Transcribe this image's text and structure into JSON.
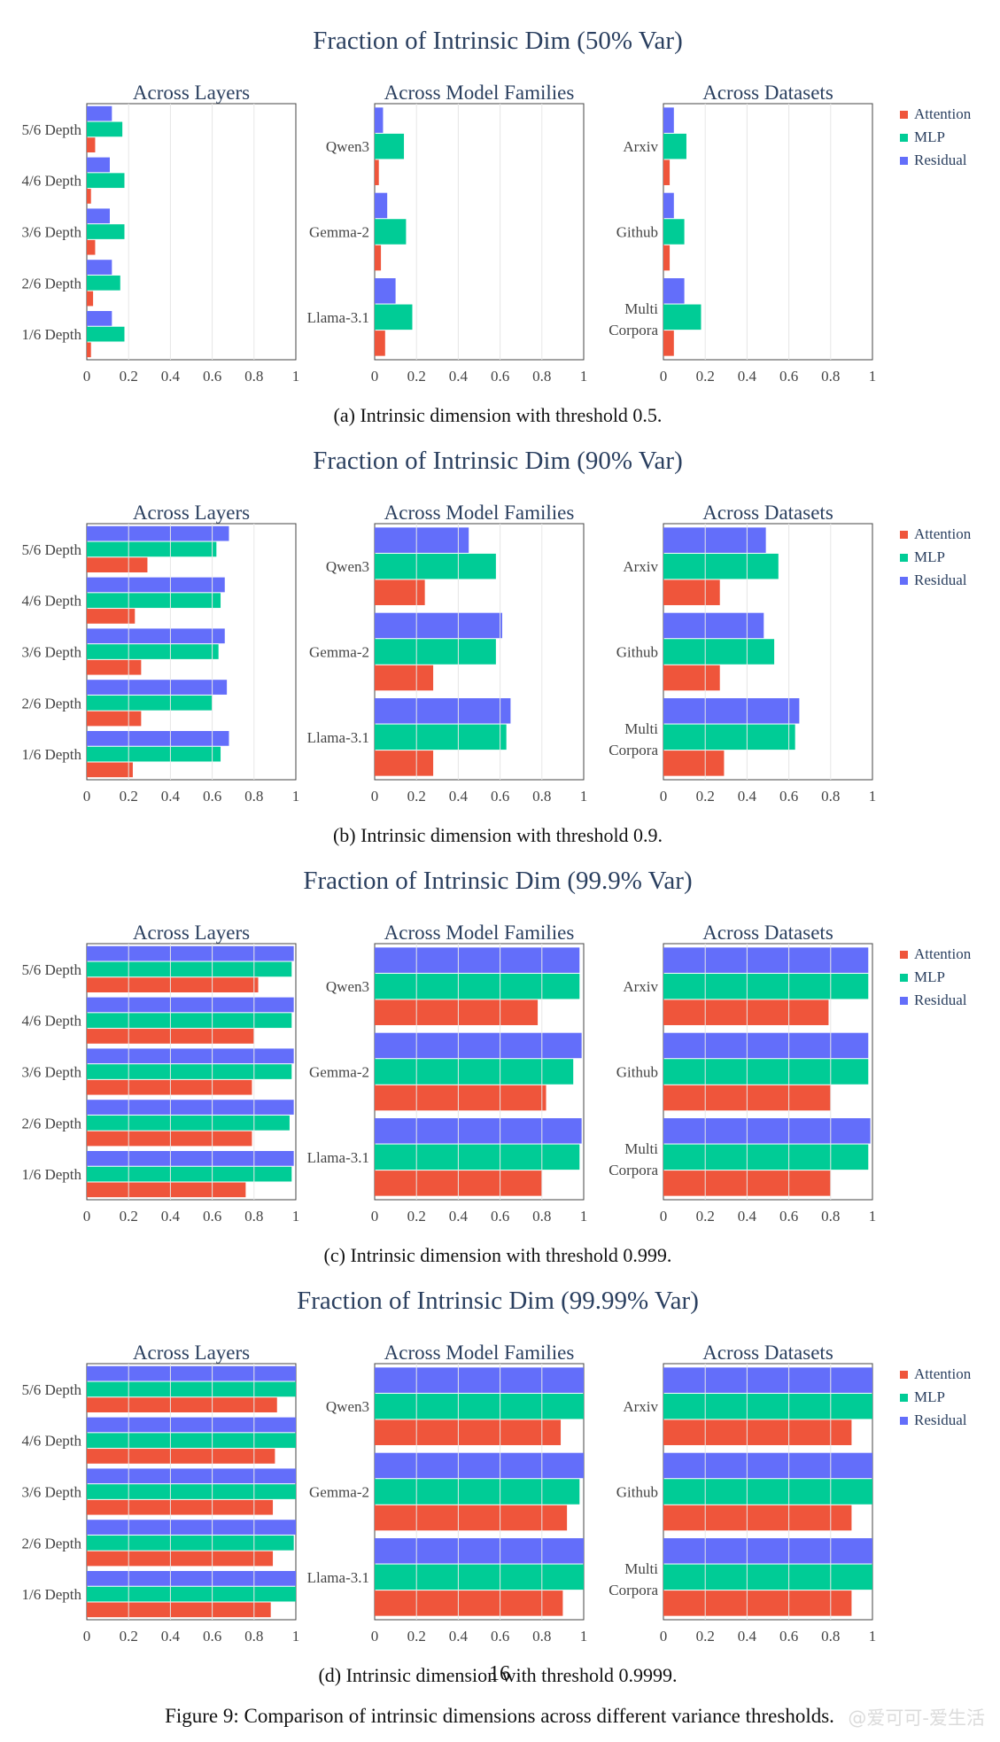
{
  "colors": {
    "attention": "#ef553b",
    "mlp": "#00cc96",
    "residual": "#636efa",
    "title": "#2a3f5f",
    "grid": "#e6e6e6",
    "axis": "#444444"
  },
  "legend": [
    "Attention",
    "MLP",
    "Residual"
  ],
  "panel_titles": [
    "Across Layers",
    "Across Model Families",
    "Across Datasets"
  ],
  "figure_caption": "Figure 9: Comparison of intrinsic dimensions across different variance thresholds.",
  "page_number": "16",
  "watermark": "@爱可可-爱生活",
  "chart_data": [
    {
      "type": "bar",
      "title": "Fraction of Intrinsic Dim (50% Var)",
      "caption": "(a) Intrinsic dimension with threshold 0.5.",
      "xlim": [
        0,
        1
      ],
      "xticks": [
        "0",
        "0.2",
        "0.4",
        "0.6",
        "0.8",
        "1"
      ],
      "panels": [
        {
          "title": "Across Layers",
          "categories": [
            "5/6 Depth",
            "4/6 Depth",
            "3/6 Depth",
            "2/6 Depth",
            "1/6 Depth"
          ],
          "series": [
            {
              "name": "Residual",
              "values": [
                0.12,
                0.11,
                0.11,
                0.12,
                0.12
              ]
            },
            {
              "name": "MLP",
              "values": [
                0.17,
                0.18,
                0.18,
                0.16,
                0.18
              ]
            },
            {
              "name": "Attention",
              "values": [
                0.04,
                0.02,
                0.04,
                0.03,
                0.02
              ]
            }
          ]
        },
        {
          "title": "Across Model Families",
          "categories": [
            "Qwen3",
            "Gemma-2",
            "Llama-3.1"
          ],
          "series": [
            {
              "name": "Residual",
              "values": [
                0.04,
                0.06,
                0.1
              ]
            },
            {
              "name": "MLP",
              "values": [
                0.14,
                0.15,
                0.18
              ]
            },
            {
              "name": "Attention",
              "values": [
                0.02,
                0.03,
                0.05
              ]
            }
          ]
        },
        {
          "title": "Across Datasets",
          "categories": [
            "Arxiv",
            "Github",
            "Multi Corpora"
          ],
          "series": [
            {
              "name": "Residual",
              "values": [
                0.05,
                0.05,
                0.1
              ]
            },
            {
              "name": "MLP",
              "values": [
                0.11,
                0.1,
                0.18
              ]
            },
            {
              "name": "Attention",
              "values": [
                0.03,
                0.03,
                0.05
              ]
            }
          ]
        }
      ]
    },
    {
      "type": "bar",
      "title": "Fraction of Intrinsic Dim (90% Var)",
      "caption": "(b) Intrinsic dimension with threshold 0.9.",
      "xlim": [
        0,
        1
      ],
      "xticks": [
        "0",
        "0.2",
        "0.4",
        "0.6",
        "0.8",
        "1"
      ],
      "panels": [
        {
          "title": "Across Layers",
          "categories": [
            "5/6 Depth",
            "4/6 Depth",
            "3/6 Depth",
            "2/6 Depth",
            "1/6 Depth"
          ],
          "series": [
            {
              "name": "Residual",
              "values": [
                0.68,
                0.66,
                0.66,
                0.67,
                0.68
              ]
            },
            {
              "name": "MLP",
              "values": [
                0.62,
                0.64,
                0.63,
                0.6,
                0.64
              ]
            },
            {
              "name": "Attention",
              "values": [
                0.29,
                0.23,
                0.26,
                0.26,
                0.22
              ]
            }
          ]
        },
        {
          "title": "Across Model Families",
          "categories": [
            "Qwen3",
            "Gemma-2",
            "Llama-3.1"
          ],
          "series": [
            {
              "name": "Residual",
              "values": [
                0.45,
                0.61,
                0.65
              ]
            },
            {
              "name": "MLP",
              "values": [
                0.58,
                0.58,
                0.63
              ]
            },
            {
              "name": "Attention",
              "values": [
                0.24,
                0.28,
                0.28
              ]
            }
          ]
        },
        {
          "title": "Across Datasets",
          "categories": [
            "Arxiv",
            "Github",
            "Multi Corpora"
          ],
          "series": [
            {
              "name": "Residual",
              "values": [
                0.49,
                0.48,
                0.65
              ]
            },
            {
              "name": "MLP",
              "values": [
                0.55,
                0.53,
                0.63
              ]
            },
            {
              "name": "Attention",
              "values": [
                0.27,
                0.27,
                0.29
              ]
            }
          ]
        }
      ]
    },
    {
      "type": "bar",
      "title": "Fraction of Intrinsic Dim (99.9% Var)",
      "caption": "(c) Intrinsic dimension with threshold 0.999.",
      "xlim": [
        0,
        1
      ],
      "xticks": [
        "0",
        "0.2",
        "0.4",
        "0.6",
        "0.8",
        "1"
      ],
      "panels": [
        {
          "title": "Across Layers",
          "categories": [
            "5/6 Depth",
            "4/6 Depth",
            "3/6 Depth",
            "2/6 Depth",
            "1/6 Depth"
          ],
          "series": [
            {
              "name": "Residual",
              "values": [
                0.99,
                0.99,
                0.99,
                0.99,
                0.99
              ]
            },
            {
              "name": "MLP",
              "values": [
                0.98,
                0.98,
                0.98,
                0.97,
                0.98
              ]
            },
            {
              "name": "Attention",
              "values": [
                0.82,
                0.8,
                0.79,
                0.79,
                0.76
              ]
            }
          ]
        },
        {
          "title": "Across Model Families",
          "categories": [
            "Qwen3",
            "Gemma-2",
            "Llama-3.1"
          ],
          "series": [
            {
              "name": "Residual",
              "values": [
                0.98,
                0.99,
                0.99
              ]
            },
            {
              "name": "MLP",
              "values": [
                0.98,
                0.95,
                0.98
              ]
            },
            {
              "name": "Attention",
              "values": [
                0.78,
                0.82,
                0.8
              ]
            }
          ]
        },
        {
          "title": "Across Datasets",
          "categories": [
            "Arxiv",
            "Github",
            "Multi Corpora"
          ],
          "series": [
            {
              "name": "Residual",
              "values": [
                0.98,
                0.98,
                0.99
              ]
            },
            {
              "name": "MLP",
              "values": [
                0.98,
                0.98,
                0.98
              ]
            },
            {
              "name": "Attention",
              "values": [
                0.79,
                0.8,
                0.8
              ]
            }
          ]
        }
      ]
    },
    {
      "type": "bar",
      "title": "Fraction of Intrinsic Dim (99.99% Var)",
      "caption": "(d) Intrinsic dimension with threshold 0.9999.",
      "xlim": [
        0,
        1
      ],
      "xticks": [
        "0",
        "0.2",
        "0.4",
        "0.6",
        "0.8",
        "1"
      ],
      "panels": [
        {
          "title": "Across Layers",
          "categories": [
            "5/6 Depth",
            "4/6 Depth",
            "3/6 Depth",
            "2/6 Depth",
            "1/6 Depth"
          ],
          "series": [
            {
              "name": "Residual",
              "values": [
                1.0,
                1.0,
                1.0,
                1.0,
                1.0
              ]
            },
            {
              "name": "MLP",
              "values": [
                1.0,
                1.0,
                1.0,
                0.99,
                1.0
              ]
            },
            {
              "name": "Attention",
              "values": [
                0.91,
                0.9,
                0.89,
                0.89,
                0.88
              ]
            }
          ]
        },
        {
          "title": "Across Model Families",
          "categories": [
            "Qwen3",
            "Gemma-2",
            "Llama-3.1"
          ],
          "series": [
            {
              "name": "Residual",
              "values": [
                1.0,
                1.0,
                1.0
              ]
            },
            {
              "name": "MLP",
              "values": [
                1.0,
                0.98,
                1.0
              ]
            },
            {
              "name": "Attention",
              "values": [
                0.89,
                0.92,
                0.9
              ]
            }
          ]
        },
        {
          "title": "Across Datasets",
          "categories": [
            "Arxiv",
            "Github",
            "Multi Corpora"
          ],
          "series": [
            {
              "name": "Residual",
              "values": [
                1.0,
                1.0,
                1.0
              ]
            },
            {
              "name": "MLP",
              "values": [
                1.0,
                1.0,
                1.0
              ]
            },
            {
              "name": "Attention",
              "values": [
                0.9,
                0.9,
                0.9
              ]
            }
          ]
        }
      ]
    }
  ]
}
